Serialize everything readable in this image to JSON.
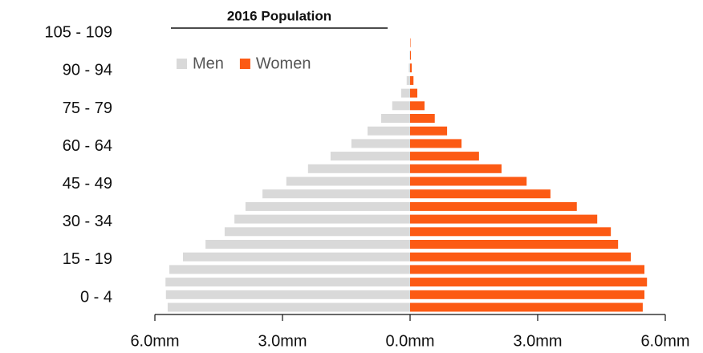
{
  "chart_data": {
    "type": "bar",
    "orientation": "horizontal",
    "title": "2016 Population",
    "categories": [
      "0 - 4",
      null,
      null,
      "15 - 19",
      null,
      null,
      "30 - 34",
      null,
      null,
      "45 - 49",
      null,
      null,
      "60 - 64",
      null,
      null,
      "75 - 79",
      null,
      null,
      "90 - 94",
      null,
      null,
      "105 - 109"
    ],
    "series": [
      {
        "name": "Men",
        "color": "#d9d9d9",
        "values": [
          -5.7,
          -5.74,
          -5.75,
          -5.66,
          -5.34,
          -4.81,
          -4.36,
          -4.13,
          -3.87,
          -3.47,
          -2.91,
          -2.4,
          -1.87,
          -1.38,
          -1.0,
          -0.68,
          -0.42,
          -0.21,
          -0.08,
          -0.03,
          -0.01,
          0.0
        ]
      },
      {
        "name": "Women",
        "color": "#fc5a14",
        "values": [
          5.47,
          5.51,
          5.57,
          5.51,
          5.19,
          4.89,
          4.72,
          4.4,
          3.92,
          3.3,
          2.74,
          2.15,
          1.62,
          1.21,
          0.87,
          0.58,
          0.34,
          0.17,
          0.08,
          0.04,
          0.02,
          0.01
        ]
      }
    ],
    "xlim": [
      -6,
      6
    ],
    "xticks": [
      {
        "value": -6,
        "label": "6.0mm"
      },
      {
        "value": -3,
        "label": "3.0mm"
      },
      {
        "value": 0,
        "label": "0.0mm"
      },
      {
        "value": 3,
        "label": "3.0mm"
      },
      {
        "value": 6,
        "label": "6.0mm"
      }
    ],
    "legend": "top-left"
  }
}
